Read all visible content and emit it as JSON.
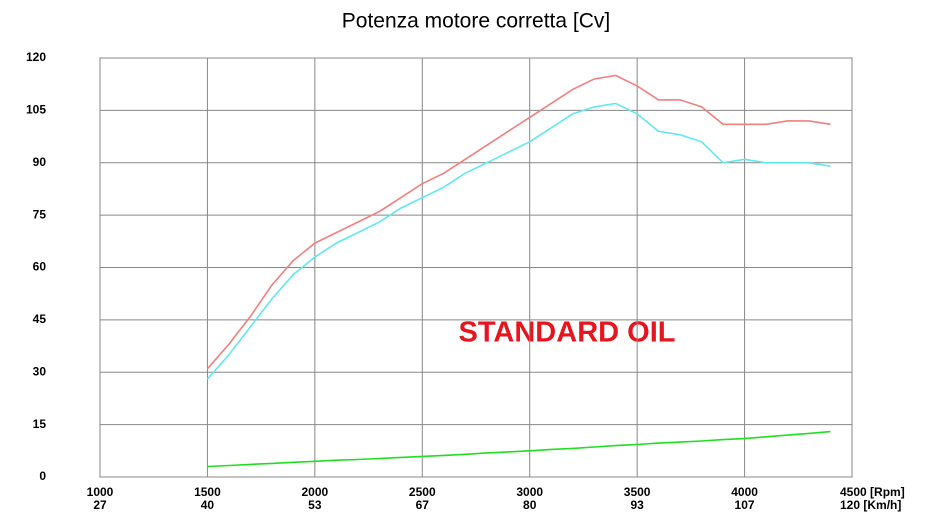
{
  "chart_data": {
    "type": "line",
    "title": "Potenza motore corretta [Cv]",
    "annotation": "STANDARD OIL",
    "x": [
      1500,
      1600,
      1700,
      1800,
      1900,
      2000,
      2100,
      2200,
      2300,
      2400,
      2500,
      2600,
      2700,
      2800,
      2900,
      3000,
      3100,
      3200,
      3300,
      3400,
      3500,
      3600,
      3700,
      3800,
      3900,
      4000,
      4100,
      4200,
      4300,
      4400
    ],
    "series": [
      {
        "color": "#f08080",
        "values": [
          31,
          38,
          46,
          55,
          62,
          67,
          70,
          73,
          76,
          80,
          84,
          87,
          91,
          95,
          99,
          103,
          107,
          111,
          114,
          115,
          112,
          108,
          108,
          106,
          101,
          101,
          101,
          102,
          102,
          101
        ]
      },
      {
        "color": "#60e8f0",
        "values": [
          28,
          35,
          43,
          51,
          58,
          63,
          67,
          70,
          73,
          77,
          80,
          83,
          87,
          90,
          93,
          96,
          100,
          104,
          106,
          107,
          104,
          99,
          98,
          96,
          90,
          91,
          90,
          90,
          90,
          89
        ]
      },
      {
        "color": "#22dd22",
        "values": [
          3,
          3.3,
          3.6,
          3.9,
          4.2,
          4.5,
          4.8,
          5,
          5.3,
          5.6,
          5.9,
          6.2,
          6.5,
          6.9,
          7.2,
          7.5,
          7.9,
          8.2,
          8.6,
          9,
          9.3,
          9.7,
          10,
          10.3,
          10.7,
          11,
          11.5,
          12,
          12.5,
          13
        ]
      }
    ],
    "xlim": [
      1000,
      4500
    ],
    "xticks": [
      1000,
      1500,
      2000,
      2500,
      3000,
      3500,
      4000,
      {
        "value": 4500,
        "label": "4500 [Rpm]"
      }
    ],
    "x2ticks": [
      27,
      40,
      53,
      67,
      80,
      93,
      107,
      {
        "value": 120,
        "label": "120 [Km/h]"
      }
    ],
    "ylim": [
      0,
      120
    ],
    "yticks": [
      0,
      15,
      30,
      45,
      60,
      75,
      90,
      105,
      120
    ],
    "grid": true
  }
}
